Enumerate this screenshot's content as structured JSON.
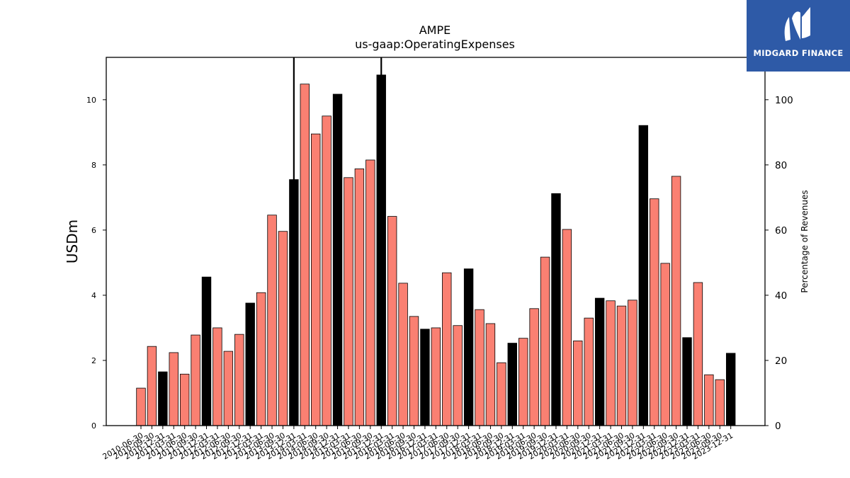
{
  "chart_data": {
    "type": "bar",
    "title": "AMPE",
    "subtitle": "us-gaap:OperatingExpenses",
    "ylabel": "USDm",
    "y2label": "Percentage of Revenues",
    "ylim": [
      0,
      11.3
    ],
    "y2lim": [
      0,
      113
    ],
    "yticks": [
      0,
      2,
      4,
      6,
      8,
      10
    ],
    "y2ticks": [
      0,
      20,
      40,
      60,
      80,
      100
    ],
    "grid": false,
    "colors": {
      "quarter": "#fa8072",
      "annual": "#000000",
      "edge": "#000000"
    },
    "categories": [
      "2010-06-30",
      "2010-09-30",
      "2010-12-31",
      "2011-03-31",
      "2011-06-30",
      "2011-09-30",
      "2011-12-31",
      "2012-03-31",
      "2012-06-30",
      "2012-09-30",
      "2012-12-31",
      "2013-03-31",
      "2013-06-30",
      "2013-09-30",
      "2013-12-31",
      "2014-03-31",
      "2014-06-30",
      "2014-09-30",
      "2014-12-31",
      "2015-03-31",
      "2015-06-30",
      "2015-09-30",
      "2015-12-31",
      "2016-03-31",
      "2016-06-30",
      "2016-09-30",
      "2016-12-31",
      "2017-03-31",
      "2017-06-30",
      "2017-09-30",
      "2017-12-31",
      "2018-03-31",
      "2018-06-30",
      "2018-09-30",
      "2018-12-31",
      "2019-03-31",
      "2019-06-30",
      "2019-09-30",
      "2019-12-31",
      "2020-03-31",
      "2020-06-30",
      "2020-09-30",
      "2020-12-31",
      "2021-03-31",
      "2021-06-30",
      "2021-09-30",
      "2021-12-31",
      "2022-03-31",
      "2022-06-30",
      "2022-09-30",
      "2022-12-31",
      "2023-03-31",
      "2023-06-30",
      "2023-09-30",
      "2023-12-31"
    ],
    "values": [
      1.15,
      2.43,
      1.65,
      2.24,
      1.58,
      2.78,
      4.56,
      3.0,
      2.28,
      2.8,
      3.76,
      4.08,
      6.46,
      5.96,
      7.55,
      10.48,
      8.95,
      9.5,
      10.17,
      7.61,
      7.88,
      8.15,
      10.76,
      6.42,
      4.37,
      3.35,
      2.96,
      3.0,
      4.69,
      3.07,
      4.81,
      3.56,
      3.13,
      1.93,
      2.53,
      2.68,
      3.59,
      5.17,
      7.12,
      6.02,
      2.6,
      3.3,
      3.91,
      3.83,
      3.67,
      3.85,
      9.21,
      6.96,
      4.98,
      7.65,
      2.7,
      4.39,
      1.56,
      1.41,
      2.22
    ],
    "annual_flags": [
      0,
      0,
      1,
      0,
      0,
      0,
      1,
      0,
      0,
      0,
      1,
      0,
      0,
      0,
      1,
      0,
      0,
      0,
      1,
      0,
      0,
      0,
      1,
      0,
      0,
      0,
      1,
      0,
      0,
      0,
      1,
      0,
      0,
      0,
      1,
      0,
      0,
      0,
      1,
      0,
      0,
      0,
      1,
      0,
      0,
      0,
      1,
      0,
      0,
      0,
      1,
      0,
      0,
      0,
      1
    ],
    "vertical_lines_at": [
      "2013-12-31",
      "2015-12-31"
    ]
  },
  "logo": {
    "text": "MIDGARD FINANCE"
  }
}
